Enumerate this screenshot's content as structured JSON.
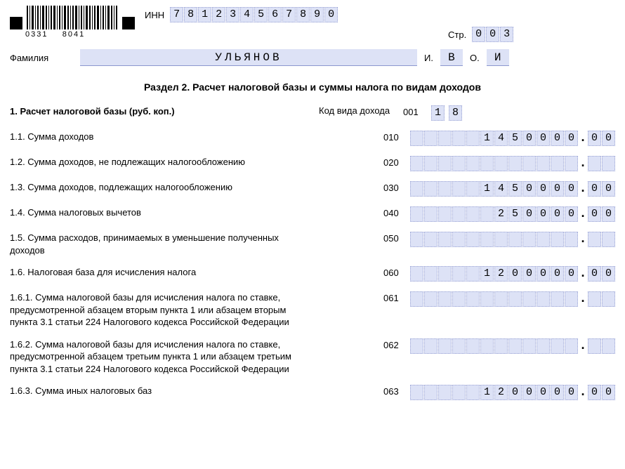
{
  "barcode": {
    "num_left": "0331",
    "num_right": "8041"
  },
  "header": {
    "inn_label": "ИНН",
    "inn": [
      "7",
      "8",
      "1",
      "2",
      "3",
      "4",
      "5",
      "6",
      "7",
      "8",
      "9",
      "0"
    ],
    "page_label": "Стр.",
    "page": [
      "0",
      "0",
      "3"
    ],
    "surname_label": "Фамилия",
    "surname": "УЛЬЯНОВ",
    "i_label": "И.",
    "initial1": "В",
    "o_label": "О.",
    "initial2": "И"
  },
  "section_title": "Раздел 2. Расчет налоговой базы и суммы налога по видам доходов",
  "main_heading": "1. Расчет налоговой базы (руб. коп.)",
  "code_type_label": "Код вида дохода",
  "code_type_code": "001",
  "code_type_value": [
    "1",
    "8"
  ],
  "rows": [
    {
      "label": "1.1. Сумма доходов",
      "code": "010",
      "int": [
        "",
        "",
        "",
        "",
        "",
        "1",
        "4",
        "5",
        "0",
        "0",
        "0",
        "0"
      ],
      "dec": [
        "0",
        "0"
      ]
    },
    {
      "label": "1.2. Сумма доходов, не подлежащих налогообложению",
      "code": "020",
      "int": [
        "",
        "",
        "",
        "",
        "",
        "",
        "",
        "",
        "",
        "",
        "",
        ""
      ],
      "dec": [
        "",
        ""
      ]
    },
    {
      "label": "1.3. Сумма доходов, подлежащих налогообложению",
      "code": "030",
      "int": [
        "",
        "",
        "",
        "",
        "",
        "1",
        "4",
        "5",
        "0",
        "0",
        "0",
        "0"
      ],
      "dec": [
        "0",
        "0"
      ]
    },
    {
      "label": "1.4. Сумма налоговых вычетов",
      "code": "040",
      "int": [
        "",
        "",
        "",
        "",
        "",
        "",
        "2",
        "5",
        "0",
        "0",
        "0",
        "0"
      ],
      "dec": [
        "0",
        "0"
      ]
    },
    {
      "label": "1.5. Сумма расходов, принимаемых в уменьшение полученных доходов",
      "code": "050",
      "int": [
        "",
        "",
        "",
        "",
        "",
        "",
        "",
        "",
        "",
        "",
        "",
        ""
      ],
      "dec": [
        "",
        ""
      ]
    },
    {
      "label": "1.6. Налоговая база для исчисления налога",
      "code": "060",
      "int": [
        "",
        "",
        "",
        "",
        "",
        "1",
        "2",
        "0",
        "0",
        "0",
        "0",
        "0"
      ],
      "dec": [
        "0",
        "0"
      ]
    },
    {
      "label": "1.6.1. Сумма налоговой базы для исчисления налога по ставке, предусмотренной абзацем вторым пункта 1 или абзацем вторым пункта 3.1 статьи 224 Налогового кодекса Российской Федерации",
      "code": "061",
      "int": [
        "",
        "",
        "",
        "",
        "",
        "",
        "",
        "",
        "",
        "",
        "",
        ""
      ],
      "dec": [
        "",
        ""
      ]
    },
    {
      "label": "1.6.2. Сумма налоговой базы для исчисления налога по ставке, предусмотренной абзацем третьим пункта 1 или абзацем третьим пункта 3.1 статьи 224 Налогового кодекса Российской Федерации",
      "code": "062",
      "int": [
        "",
        "",
        "",
        "",
        "",
        "",
        "",
        "",
        "",
        "",
        "",
        ""
      ],
      "dec": [
        "",
        ""
      ]
    },
    {
      "label": "1.6.3. Сумма иных налоговых баз",
      "code": "063",
      "int": [
        "",
        "",
        "",
        "",
        "",
        "1",
        "2",
        "0",
        "0",
        "0",
        "0",
        "0"
      ],
      "dec": [
        "0",
        "0"
      ]
    }
  ],
  "colors": {
    "cell_bg": "#dde2f6",
    "cell_border": "#9aa3d4"
  }
}
